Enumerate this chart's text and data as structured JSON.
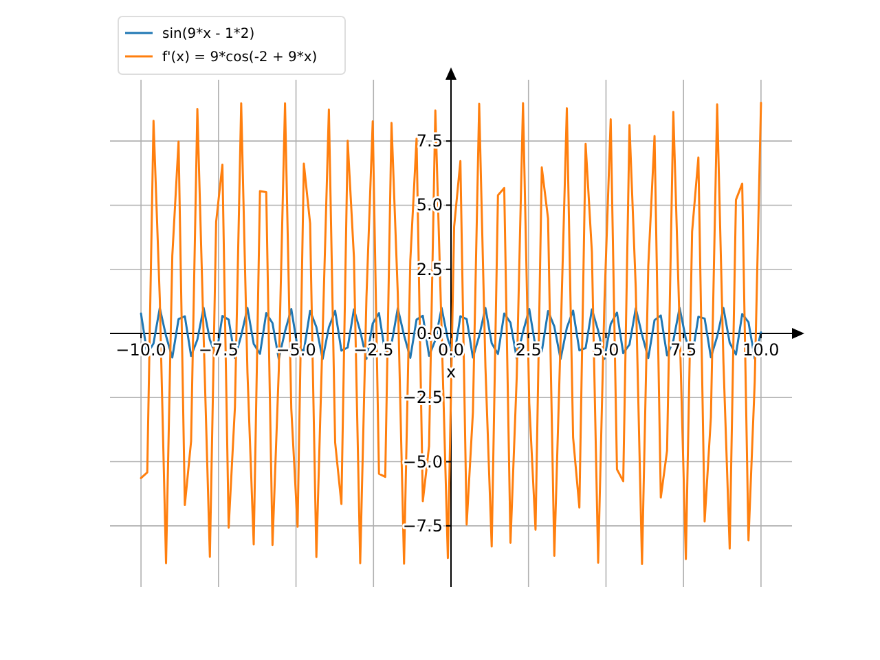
{
  "chart_data": {
    "type": "line",
    "xlabel": "x",
    "x": [
      -10,
      -9.798,
      -9.596,
      -9.394,
      -9.192,
      -8.99,
      -8.788,
      -8.586,
      -8.384,
      -8.182,
      -7.98,
      -7.778,
      -7.576,
      -7.374,
      -7.172,
      -6.97,
      -6.768,
      -6.566,
      -6.364,
      -6.162,
      -5.96,
      -5.758,
      -5.556,
      -5.354,
      -5.152,
      -4.949,
      -4.747,
      -4.545,
      -4.343,
      -4.141,
      -3.939,
      -3.737,
      -3.535,
      -3.333,
      -3.131,
      -2.929,
      -2.727,
      -2.525,
      -2.323,
      -2.121,
      -1.919,
      -1.717,
      -1.515,
      -1.313,
      -1.111,
      -0.909,
      -0.707,
      -0.505,
      -0.303,
      -0.101,
      0.101,
      0.303,
      0.505,
      0.707,
      0.909,
      1.111,
      1.313,
      1.515,
      1.717,
      1.919,
      2.121,
      2.323,
      2.525,
      2.727,
      2.929,
      3.131,
      3.333,
      3.535,
      3.737,
      3.939,
      4.141,
      4.343,
      4.545,
      4.747,
      4.949,
      5.152,
      5.354,
      5.556,
      5.758,
      5.96,
      6.162,
      6.364,
      6.566,
      6.768,
      6.97,
      7.172,
      7.374,
      7.576,
      7.778,
      7.98,
      8.182,
      8.384,
      8.586,
      8.788,
      8.99,
      9.192,
      9.394,
      9.596,
      9.798,
      10
    ],
    "series": [
      {
        "name": "sin(9*x - 1*2)",
        "color": "#1f77b4",
        "values": [
          0.78,
          -0.8,
          -0.39,
          0.99,
          -0.1,
          -0.94,
          0.56,
          0.67,
          -0.88,
          -0.24,
          1.0,
          -0.25,
          -0.88,
          0.68,
          0.54,
          -0.95,
          -0.08,
          0.99,
          -0.41,
          -0.79,
          0.79,
          0.4,
          -0.99,
          0.08,
          0.95,
          -0.55,
          -0.68,
          0.88,
          0.25,
          -1.0,
          0.24,
          0.88,
          -0.67,
          -0.55,
          0.94,
          0.09,
          -0.99,
          0.39,
          0.79,
          -0.78,
          -0.41,
          0.98,
          -0.07,
          -0.95,
          0.54,
          0.69,
          -0.87,
          -0.26,
          1.0,
          -0.23,
          -0.89,
          0.67,
          0.56,
          -0.94,
          -0.1,
          0.99,
          -0.38,
          -0.8,
          0.78,
          0.42,
          -0.98,
          0.06,
          0.95,
          -0.53,
          -0.7,
          0.87,
          0.27,
          -1.0,
          0.22,
          0.89,
          -0.66,
          -0.57,
          0.94,
          0.11,
          -0.99,
          0.37,
          0.81,
          -0.77,
          -0.43,
          0.98,
          -0.05,
          -0.96,
          0.52,
          0.7,
          -0.86,
          -0.28,
          1.0,
          -0.21,
          -0.9,
          0.65,
          0.58,
          -0.93,
          -0.12,
          0.99,
          -0.36,
          -0.82,
          0.76,
          0.44,
          -0.98,
          0.04
        ]
      },
      {
        "name": "f'(x) = 9*cos(-2 + 9*x)",
        "color": "#ff7f0e",
        "values": [
          -5.64,
          -5.42,
          8.29,
          1.36,
          -8.96,
          3.03,
          7.48,
          -6.69,
          -4.2,
          8.75,
          -0.08,
          -8.71,
          4.35,
          6.58,
          -7.57,
          -2.87,
          8.97,
          -1.52,
          -8.23,
          5.55,
          5.51,
          -8.25,
          -1.46,
          8.97,
          -2.93,
          -7.54,
          6.62,
          4.29,
          -8.72,
          -0.02,
          8.73,
          -4.25,
          -6.65,
          7.51,
          2.97,
          -8.96,
          1.42,
          8.27,
          -5.47,
          -5.59,
          8.21,
          1.57,
          -8.98,
          2.83,
          7.59,
          -6.54,
          -4.39,
          8.69,
          0.13,
          -8.76,
          4.16,
          6.72,
          -7.45,
          -3.07,
          8.95,
          -1.31,
          -8.31,
          5.39,
          5.67,
          -8.16,
          -1.68,
          8.98,
          -2.72,
          -7.65,
          6.47,
          4.48,
          -8.67,
          -0.24,
          8.78,
          -4.06,
          -6.79,
          7.39,
          3.17,
          -8.94,
          1.21,
          8.35,
          -5.3,
          -5.76,
          8.12,
          1.78,
          -8.99,
          2.62,
          7.7,
          -6.4,
          -4.57,
          8.64,
          0.34,
          -8.8,
          3.97,
          6.86,
          -7.33,
          -3.27,
          8.93,
          -1.1,
          -8.39,
          5.21,
          5.84,
          -8.07,
          -1.88,
          8.99
        ]
      }
    ],
    "xlim": [
      -11,
      11
    ],
    "ylim": [
      -9.89,
      9.89
    ],
    "xticks": [
      {
        "value": -10,
        "label": "−10.0"
      },
      {
        "value": -7.5,
        "label": "−7.5"
      },
      {
        "value": -5,
        "label": "−5.0"
      },
      {
        "value": -2.5,
        "label": "−2.5"
      },
      {
        "value": 0,
        "label": "0.0"
      },
      {
        "value": 2.5,
        "label": "2.5"
      },
      {
        "value": 5,
        "label": "5.0"
      },
      {
        "value": 7.5,
        "label": "7.5"
      },
      {
        "value": 10,
        "label": "10.0"
      }
    ],
    "yticks": [
      {
        "value": -7.5,
        "label": "−7.5"
      },
      {
        "value": -5,
        "label": "−5.0"
      },
      {
        "value": -2.5,
        "label": "−2.5"
      },
      {
        "value": 0,
        "label": "0.0"
      },
      {
        "value": 2.5,
        "label": "2.5"
      },
      {
        "value": 5,
        "label": "5.0"
      },
      {
        "value": 7.5,
        "label": "7.5"
      }
    ],
    "grid": true,
    "legend": "top left"
  }
}
